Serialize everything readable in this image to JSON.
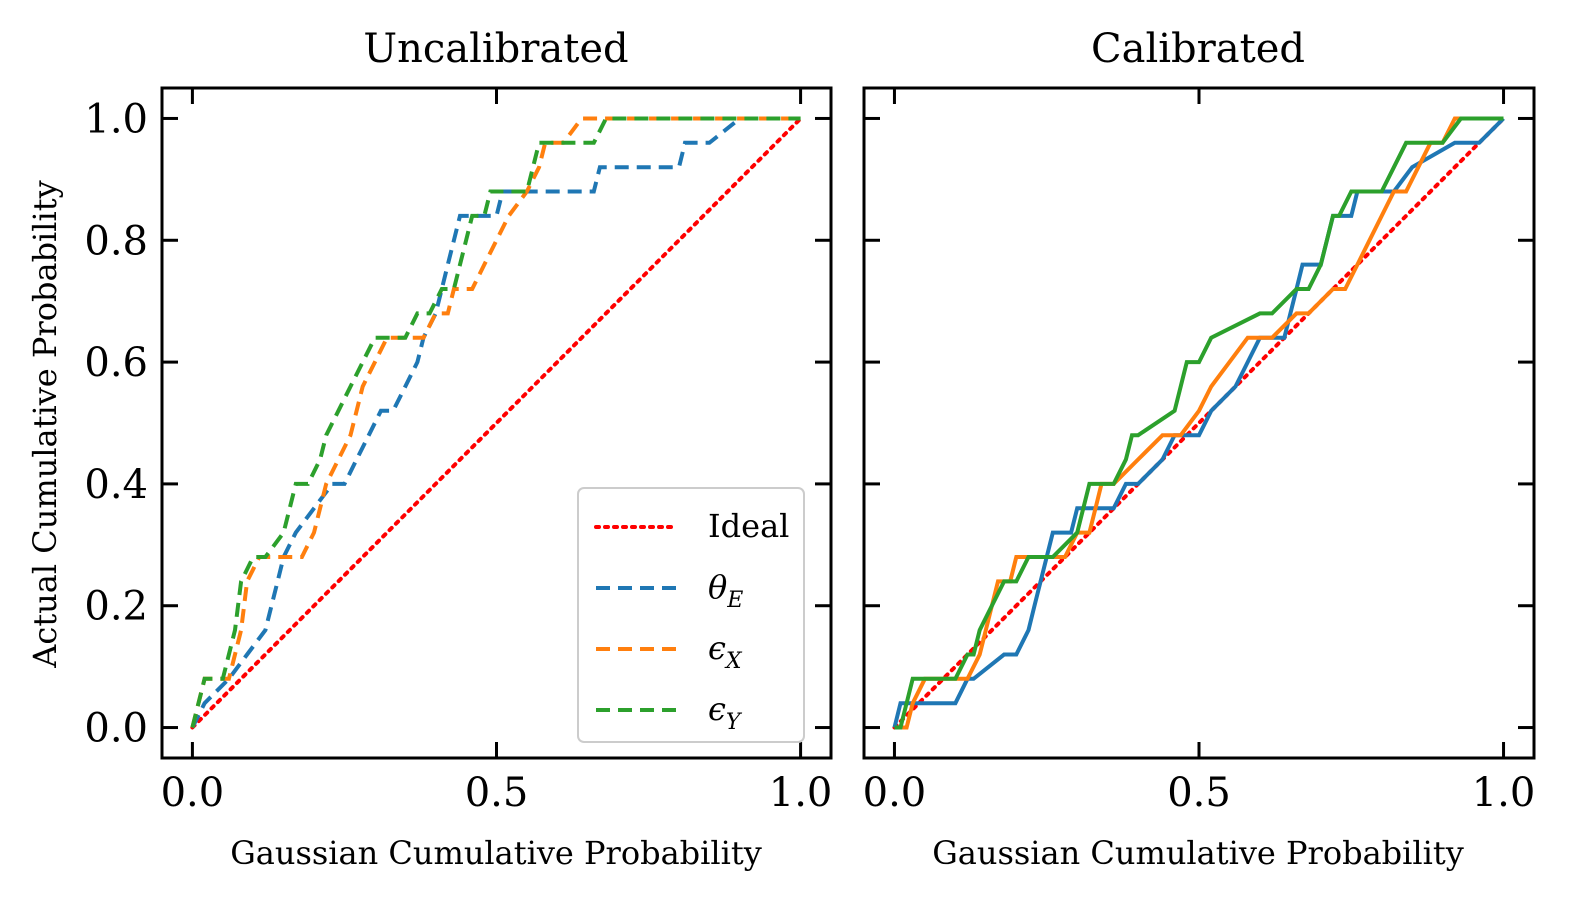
{
  "legend": {
    "entries": [
      {
        "label": "Ideal",
        "color": "#ff0000",
        "style": "dotted"
      },
      {
        "label": "θ",
        "sub": "E",
        "color": "#1f77b4",
        "style": "dashed"
      },
      {
        "label": "ϵ",
        "sub": "X",
        "color": "#ff7f0e",
        "style": "dashed"
      },
      {
        "label": "ϵ",
        "sub": "Y",
        "color": "#2ca02c",
        "style": "dashed"
      }
    ],
    "placement": "lower-right"
  },
  "chart_data": [
    {
      "type": "line",
      "title": "Uncalibrated",
      "xlabel": "Gaussian Cumulative Probability",
      "ylabel": "Actual Cumulative Probability",
      "xlim": [
        -0.05,
        1.05
      ],
      "ylim": [
        -0.05,
        1.05
      ],
      "xticks": [
        0.0,
        0.5,
        1.0
      ],
      "xtick_labels": [
        "0.0",
        "0.5",
        "1.0"
      ],
      "yticks": [
        0.0,
        0.2,
        0.4,
        0.6,
        0.8,
        1.0
      ],
      "ytick_labels": [
        "0.0",
        "0.2",
        "0.4",
        "0.6",
        "0.8",
        "1.0"
      ],
      "grid": false,
      "legend": "lower-right",
      "series": [
        {
          "key": "ideal",
          "color": "#ff0000",
          "style": "dotted",
          "x": [
            0,
            1
          ],
          "y": [
            0,
            1
          ]
        },
        {
          "key": "theta_e",
          "color": "#1f77b4",
          "style": "dashed",
          "x": [
            0.0,
            0.02,
            0.06,
            0.09,
            0.12,
            0.14,
            0.15,
            0.17,
            0.2,
            0.23,
            0.25,
            0.27,
            0.29,
            0.31,
            0.33,
            0.35,
            0.37,
            0.38,
            0.4,
            0.41,
            0.42,
            0.43,
            0.44,
            0.45,
            0.46,
            0.47,
            0.48,
            0.49,
            0.5,
            0.51,
            0.52,
            0.55,
            0.6,
            0.65,
            0.66,
            0.67,
            0.7,
            0.8,
            0.81,
            0.85,
            0.9,
            1.0
          ],
          "y": [
            0.0,
            0.04,
            0.08,
            0.12,
            0.16,
            0.24,
            0.28,
            0.32,
            0.36,
            0.4,
            0.4,
            0.44,
            0.48,
            0.52,
            0.52,
            0.56,
            0.6,
            0.64,
            0.68,
            0.72,
            0.76,
            0.8,
            0.84,
            0.84,
            0.84,
            0.84,
            0.84,
            0.84,
            0.84,
            0.88,
            0.88,
            0.88,
            0.88,
            0.88,
            0.88,
            0.92,
            0.92,
            0.92,
            0.96,
            0.96,
            1.0,
            1.0
          ]
        },
        {
          "key": "eps_x",
          "color": "#ff7f0e",
          "style": "dashed",
          "x": [
            0.0,
            0.02,
            0.04,
            0.06,
            0.08,
            0.09,
            0.11,
            0.13,
            0.15,
            0.18,
            0.2,
            0.22,
            0.24,
            0.26,
            0.28,
            0.3,
            0.32,
            0.35,
            0.38,
            0.4,
            0.42,
            0.43,
            0.46,
            0.48,
            0.5,
            0.52,
            0.55,
            0.57,
            0.58,
            0.61,
            0.64,
            0.7,
            1.0
          ],
          "y": [
            0.0,
            0.08,
            0.08,
            0.08,
            0.16,
            0.24,
            0.28,
            0.28,
            0.28,
            0.28,
            0.32,
            0.4,
            0.44,
            0.48,
            0.56,
            0.6,
            0.64,
            0.64,
            0.64,
            0.68,
            0.68,
            0.72,
            0.72,
            0.76,
            0.8,
            0.84,
            0.88,
            0.92,
            0.96,
            0.96,
            1.0,
            1.0,
            1.0
          ]
        },
        {
          "key": "eps_y",
          "color": "#2ca02c",
          "style": "dashed",
          "x": [
            0.0,
            0.01,
            0.02,
            0.05,
            0.07,
            0.08,
            0.1,
            0.12,
            0.15,
            0.17,
            0.19,
            0.21,
            0.22,
            0.24,
            0.26,
            0.28,
            0.3,
            0.32,
            0.35,
            0.37,
            0.39,
            0.41,
            0.43,
            0.44,
            0.45,
            0.46,
            0.48,
            0.49,
            0.5,
            0.55,
            0.56,
            0.57,
            0.58,
            0.62,
            0.66,
            0.68,
            0.7,
            1.0
          ],
          "y": [
            0.0,
            0.04,
            0.08,
            0.08,
            0.16,
            0.24,
            0.28,
            0.28,
            0.32,
            0.4,
            0.4,
            0.44,
            0.48,
            0.52,
            0.56,
            0.6,
            0.64,
            0.64,
            0.64,
            0.68,
            0.68,
            0.72,
            0.72,
            0.76,
            0.8,
            0.84,
            0.84,
            0.88,
            0.88,
            0.88,
            0.92,
            0.96,
            0.96,
            0.96,
            0.96,
            1.0,
            1.0,
            1.0
          ]
        }
      ]
    },
    {
      "type": "line",
      "title": "Calibrated",
      "xlabel": "Gaussian Cumulative Probability",
      "ylabel": "",
      "xlim": [
        -0.05,
        1.05
      ],
      "ylim": [
        -0.05,
        1.05
      ],
      "xticks": [
        0.0,
        0.5,
        1.0
      ],
      "xtick_labels": [
        "0.0",
        "0.5",
        "1.0"
      ],
      "yticks": [
        0.0,
        0.2,
        0.4,
        0.6,
        0.8,
        1.0
      ],
      "ytick_labels": [
        "",
        "",
        "",
        "",
        "",
        ""
      ],
      "grid": false,
      "series": [
        {
          "key": "ideal",
          "color": "#ff0000",
          "style": "dotted",
          "x": [
            0,
            1
          ],
          "y": [
            0,
            1
          ]
        },
        {
          "key": "theta_e",
          "color": "#1f77b4",
          "style": "solid",
          "x": [
            0.0,
            0.01,
            0.02,
            0.1,
            0.12,
            0.13,
            0.18,
            0.2,
            0.22,
            0.23,
            0.24,
            0.25,
            0.26,
            0.29,
            0.3,
            0.31,
            0.36,
            0.38,
            0.4,
            0.44,
            0.46,
            0.47,
            0.5,
            0.52,
            0.56,
            0.58,
            0.6,
            0.62,
            0.64,
            0.65,
            0.66,
            0.67,
            0.68,
            0.7,
            0.71,
            0.72,
            0.73,
            0.74,
            0.75,
            0.76,
            0.77,
            0.78,
            0.8,
            0.82,
            0.85,
            0.92,
            0.96,
            1.0
          ],
          "y": [
            0.0,
            0.04,
            0.04,
            0.04,
            0.08,
            0.08,
            0.12,
            0.12,
            0.16,
            0.2,
            0.24,
            0.28,
            0.32,
            0.32,
            0.36,
            0.36,
            0.36,
            0.4,
            0.4,
            0.44,
            0.48,
            0.48,
            0.48,
            0.52,
            0.56,
            0.6,
            0.64,
            0.64,
            0.64,
            0.68,
            0.72,
            0.76,
            0.76,
            0.76,
            0.8,
            0.84,
            0.84,
            0.84,
            0.84,
            0.88,
            0.88,
            0.88,
            0.88,
            0.88,
            0.92,
            0.96,
            0.96,
            1.0
          ]
        },
        {
          "key": "eps_x",
          "color": "#ff7f0e",
          "style": "solid",
          "x": [
            0.0,
            0.02,
            0.03,
            0.05,
            0.12,
            0.14,
            0.15,
            0.16,
            0.17,
            0.18,
            0.19,
            0.2,
            0.22,
            0.24,
            0.26,
            0.28,
            0.3,
            0.32,
            0.33,
            0.34,
            0.36,
            0.4,
            0.44,
            0.47,
            0.5,
            0.52,
            0.55,
            0.58,
            0.62,
            0.66,
            0.68,
            0.72,
            0.74,
            0.76,
            0.78,
            0.8,
            0.82,
            0.84,
            0.86,
            0.88,
            0.9,
            0.92,
            0.96,
            1.0
          ],
          "y": [
            0.0,
            0.0,
            0.04,
            0.08,
            0.08,
            0.12,
            0.16,
            0.2,
            0.24,
            0.24,
            0.24,
            0.28,
            0.28,
            0.28,
            0.28,
            0.28,
            0.32,
            0.32,
            0.36,
            0.4,
            0.4,
            0.44,
            0.48,
            0.48,
            0.52,
            0.56,
            0.6,
            0.64,
            0.64,
            0.68,
            0.68,
            0.72,
            0.72,
            0.76,
            0.8,
            0.84,
            0.88,
            0.88,
            0.92,
            0.96,
            0.96,
            1.0,
            1.0,
            1.0
          ]
        },
        {
          "key": "eps_y",
          "color": "#2ca02c",
          "style": "solid",
          "x": [
            0.0,
            0.01,
            0.02,
            0.03,
            0.1,
            0.12,
            0.13,
            0.14,
            0.16,
            0.18,
            0.2,
            0.22,
            0.26,
            0.3,
            0.31,
            0.32,
            0.36,
            0.38,
            0.39,
            0.4,
            0.46,
            0.47,
            0.48,
            0.5,
            0.52,
            0.6,
            0.62,
            0.66,
            0.68,
            0.7,
            0.72,
            0.73,
            0.75,
            0.8,
            0.82,
            0.84,
            0.86,
            0.88,
            0.9,
            0.93,
            0.96,
            1.0
          ],
          "y": [
            0.0,
            0.0,
            0.04,
            0.08,
            0.08,
            0.12,
            0.12,
            0.16,
            0.2,
            0.24,
            0.24,
            0.28,
            0.28,
            0.32,
            0.36,
            0.4,
            0.4,
            0.44,
            0.48,
            0.48,
            0.52,
            0.56,
            0.6,
            0.6,
            0.64,
            0.68,
            0.68,
            0.72,
            0.72,
            0.76,
            0.84,
            0.84,
            0.88,
            0.88,
            0.92,
            0.96,
            0.96,
            0.96,
            0.96,
            1.0,
            1.0,
            1.0
          ]
        }
      ]
    }
  ]
}
